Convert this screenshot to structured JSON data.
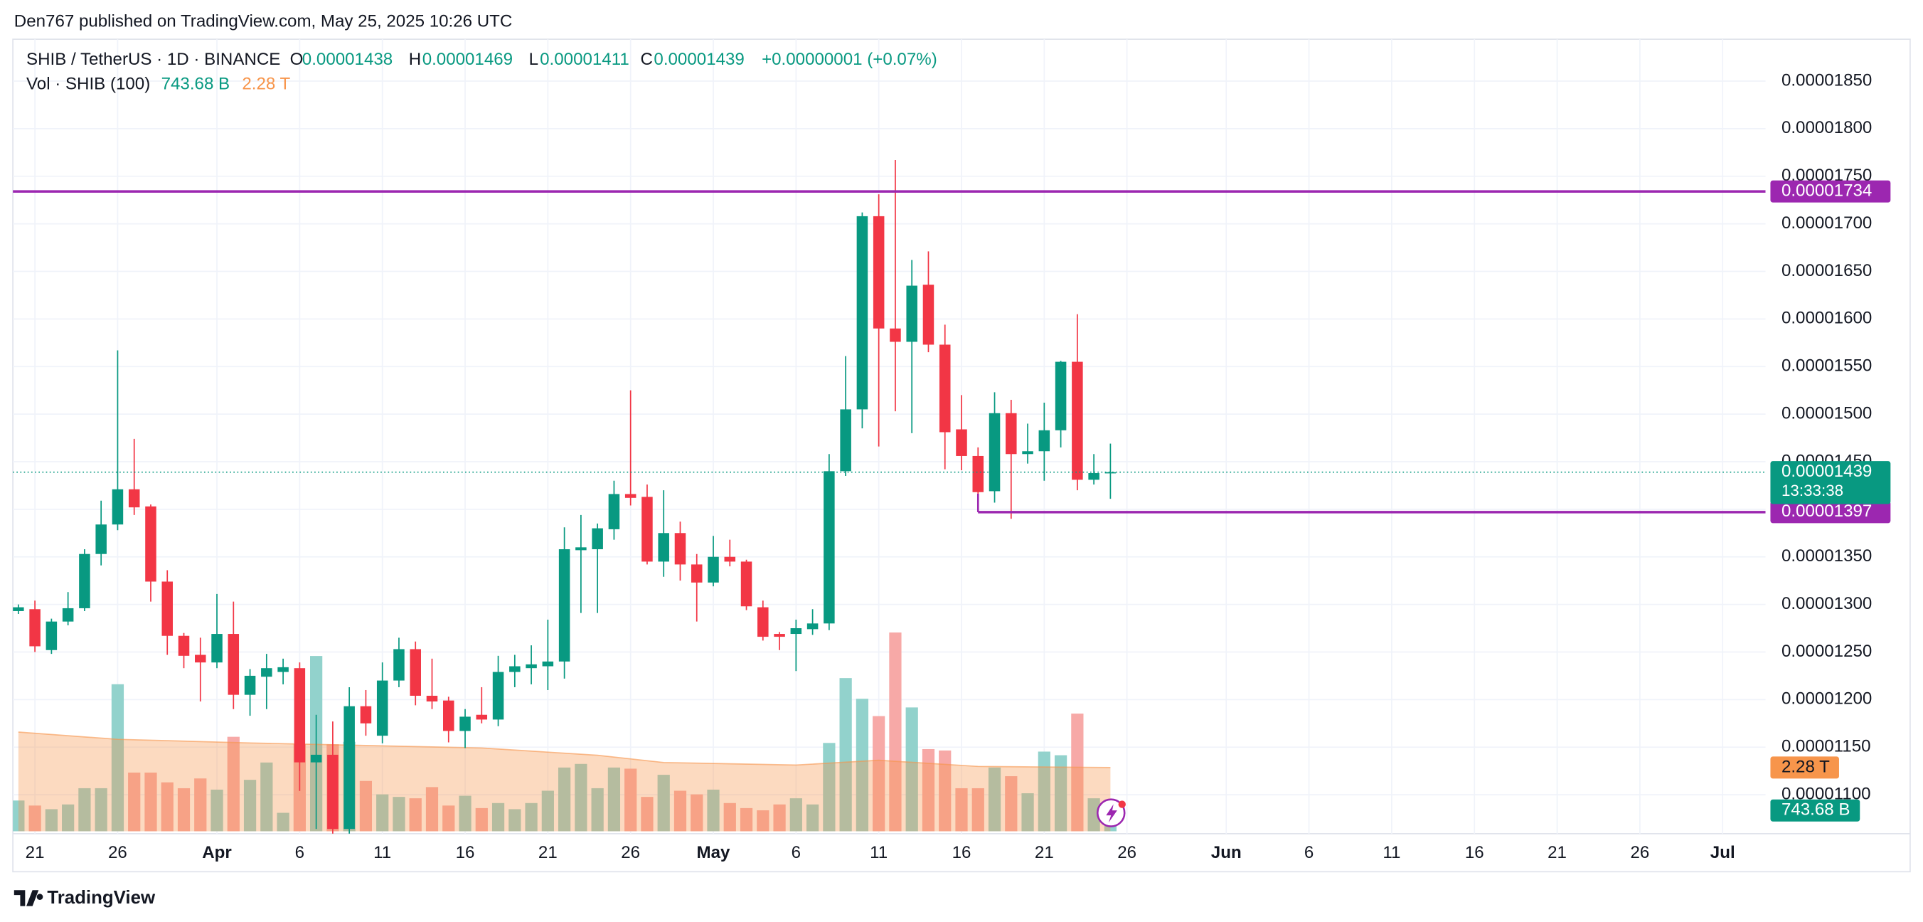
{
  "header": {
    "publisher": "Den767 published on TradingView.com, May 25, 2025 10:26 UTC"
  },
  "footer": {
    "brand": "TradingView"
  },
  "chart_data": {
    "type": "candlestick",
    "legend": {
      "symbol": "SHIB / TetherUS · 1D · BINANCE",
      "o_key": "O",
      "open": "0.00001438",
      "h_key": "H",
      "high": "0.00001469",
      "l_key": "L",
      "low": "0.00001411",
      "c_key": "C",
      "change": "+0.00000001 (+0.07%)",
      "volume_title": "Vol · SHIB (100)"
    },
    "x": [
      "2025-03-20",
      "2025-03-21",
      "2025-03-22",
      "2025-03-23",
      "2025-03-24",
      "2025-03-25",
      "2025-03-26",
      "2025-03-27",
      "2025-03-28",
      "2025-03-29",
      "2025-03-30",
      "2025-03-31",
      "2025-04-01",
      "2025-04-02",
      "2025-04-03",
      "2025-04-04",
      "2025-04-05",
      "2025-04-06",
      "2025-04-07",
      "2025-04-08",
      "2025-04-09",
      "2025-04-10",
      "2025-04-11",
      "2025-04-12",
      "2025-04-13",
      "2025-04-14",
      "2025-04-15",
      "2025-04-16",
      "2025-04-17",
      "2025-04-18",
      "2025-04-19",
      "2025-04-20",
      "2025-04-21",
      "2025-04-22",
      "2025-04-23",
      "2025-04-24",
      "2025-04-25",
      "2025-04-26",
      "2025-04-27",
      "2025-04-28",
      "2025-04-29",
      "2025-04-30",
      "2025-05-01",
      "2025-05-02",
      "2025-05-03",
      "2025-05-04",
      "2025-05-05",
      "2025-05-06",
      "2025-05-07",
      "2025-05-08",
      "2025-05-09",
      "2025-05-10",
      "2025-05-11",
      "2025-05-12",
      "2025-05-13",
      "2025-05-14",
      "2025-05-15",
      "2025-05-16",
      "2025-05-17",
      "2025-05-18",
      "2025-05-19",
      "2025-05-20",
      "2025-05-21",
      "2025-05-22",
      "2025-05-23",
      "2025-05-24",
      "2025-05-25"
    ],
    "open": [
      1.293e-05,
      1.295e-05,
      1.252e-05,
      1.282e-05,
      1.296e-05,
      1.353e-05,
      1.384e-05,
      1.421e-05,
      1.403e-05,
      1.324e-05,
      1.267e-05,
      1.247e-05,
      1.239e-05,
      1.269e-05,
      1.205e-05,
      1.224e-05,
      1.229e-05,
      1.233e-05,
      1.134e-05,
      1.142e-05,
      1.064e-05,
      1.193e-05,
      1.162e-05,
      1.22e-05,
      1.253e-05,
      1.204e-05,
      1.199e-05,
      1.167e-05,
      1.184e-05,
      1.179e-05,
      1.229e-05,
      1.233e-05,
      1.235e-05,
      1.24e-05,
      1.357e-05,
      1.358e-05,
      1.379e-05,
      1.416e-05,
      1.413e-05,
      1.345e-05,
      1.375e-05,
      1.342e-05,
      1.323e-05,
      1.35e-05,
      1.345e-05,
      1.297e-05,
      1.269e-05,
      1.269e-05,
      1.274e-05,
      1.28e-05,
      1.44e-05,
      1.505e-05,
      1.708e-05,
      1.59e-05,
      1.576e-05,
      1.636e-05,
      1.573e-05,
      1.484e-05,
      1.456e-05,
      1.419e-05,
      1.501e-05,
      1.458e-05,
      1.461e-05,
      1.483e-05,
      1.555e-05,
      1.431e-05,
      1.438e-05
    ],
    "high": [
      1.3e-05,
      1.304e-05,
      1.285e-05,
      1.313e-05,
      1.358e-05,
      1.409e-05,
      1.567e-05,
      1.474e-05,
      1.405e-05,
      1.336e-05,
      1.27e-05,
      1.265e-05,
      1.311e-05,
      1.303e-05,
      1.232e-05,
      1.248e-05,
      1.243e-05,
      1.239e-05,
      1.184e-05,
      1.177e-05,
      1.213e-05,
      1.21e-05,
      1.239e-05,
      1.265e-05,
      1.261e-05,
      1.243e-05,
      1.203e-05,
      1.19e-05,
      1.213e-05,
      1.246e-05,
      1.247e-05,
      1.257e-05,
      1.284e-05,
      1.381e-05,
      1.394e-05,
      1.385e-05,
      1.43e-05,
      1.525e-05,
      1.426e-05,
      1.42e-05,
      1.387e-05,
      1.353e-05,
      1.372e-05,
      1.368e-05,
      1.347e-05,
      1.304e-05,
      1.271e-05,
      1.284e-05,
      1.295e-05,
      1.458e-05,
      1.561e-05,
      1.712e-05,
      1.731e-05,
      1.767e-05,
      1.662e-05,
      1.671e-05,
      1.594e-05,
      1.52e-05,
      1.465e-05,
      1.523e-05,
      1.515e-05,
      1.49e-05,
      1.512e-05,
      1.556e-05,
      1.605e-05,
      1.458e-05,
      1.469e-05
    ],
    "low": [
      1.29e-05,
      1.25e-05,
      1.248e-05,
      1.278e-05,
      1.293e-05,
      1.341e-05,
      1.378e-05,
      1.394e-05,
      1.303e-05,
      1.247e-05,
      1.233e-05,
      1.198e-05,
      1.233e-05,
      1.19e-05,
      1.183e-05,
      1.19e-05,
      1.216e-05,
      1.104e-05,
      1.064e-05,
      1.059e-05,
      1.059e-05,
      1.162e-05,
      1.154e-05,
      1.213e-05,
      1.194e-05,
      1.19e-05,
      1.155e-05,
      1.149e-05,
      1.175e-05,
      1.172e-05,
      1.213e-05,
      1.216e-05,
      1.21e-05,
      1.222e-05,
      1.291e-05,
      1.291e-05,
      1.368e-05,
      1.404e-05,
      1.342e-05,
      1.329e-05,
      1.325e-05,
      1.282e-05,
      1.319e-05,
      1.34e-05,
      1.294e-05,
      1.262e-05,
      1.252e-05,
      1.23e-05,
      1.268e-05,
      1.273e-05,
      1.435e-05,
      1.485e-05,
      1.466e-05,
      1.503e-05,
      1.48e-05,
      1.565e-05,
      1.442e-05,
      1.441e-05,
      1.416e-05,
      1.407e-05,
      1.39e-05,
      1.448e-05,
      1.43e-05,
      1.465e-05,
      1.42e-05,
      1.426e-05,
      1.411e-05
    ],
    "close": [
      1.297e-05,
      1.256e-05,
      1.282e-05,
      1.296e-05,
      1.353e-05,
      1.384e-05,
      1.421e-05,
      1.402e-05,
      1.324e-05,
      1.267e-05,
      1.246e-05,
      1.239e-05,
      1.269e-05,
      1.205e-05,
      1.225e-05,
      1.233e-05,
      1.234e-05,
      1.134e-05,
      1.142e-05,
      1.064e-05,
      1.193e-05,
      1.175e-05,
      1.22e-05,
      1.253e-05,
      1.204e-05,
      1.198e-05,
      1.167e-05,
      1.182e-05,
      1.179e-05,
      1.229e-05,
      1.235e-05,
      1.237e-05,
      1.24e-05,
      1.358e-05,
      1.36e-05,
      1.38e-05,
      1.416e-05,
      1.412e-05,
      1.345e-05,
      1.375e-05,
      1.342e-05,
      1.323e-05,
      1.35e-05,
      1.345e-05,
      1.298e-05,
      1.266e-05,
      1.266e-05,
      1.275e-05,
      1.28e-05,
      1.44e-05,
      1.505e-05,
      1.708e-05,
      1.59e-05,
      1.576e-05,
      1.635e-05,
      1.573e-05,
      1.481e-05,
      1.456e-05,
      1.418e-05,
      1.501e-05,
      1.458e-05,
      1.461e-05,
      1.483e-05,
      1.555e-05,
      1.431e-05,
      1.438e-05,
      1.439e-05
    ],
    "up_color": "#089981",
    "down_color": "#f23645",
    "volume": {
      "values": [
        1100000000000.0,
        920000000000.0,
        790000000000.0,
        960000000000.0,
        1540000000000.0,
        1540000000000.0,
        5260000000000.0,
        2100000000000.0,
        2100000000000.0,
        1750000000000.0,
        1540000000000.0,
        1890000000000.0,
        1490000000000.0,
        3380000000000.0,
        1840000000000.0,
        2460000000000.0,
        660000000000.0,
        3110000000000.0,
        6270000000000.0,
        3110000000000.0,
        3200000000000.0,
        1800000000000.0,
        1320000000000.0,
        1230000000000.0,
        1180000000000.0,
        1580000000000.0,
        920000000000.0,
        1270000000000.0,
        830000000000.0,
        1010000000000.0,
        790000000000.0,
        1010000000000.0,
        1450000000000.0,
        2280000000000.0,
        2410000000000.0,
        1540000000000.0,
        2280000000000.0,
        2240000000000.0,
        1230000000000.0,
        2020000000000.0,
        1450000000000.0,
        1320000000000.0,
        1490000000000.0,
        1010000000000.0,
        830000000000.0,
        750000000000.0,
        960000000000.0,
        1180000000000.0,
        960000000000.0,
        3160000000000.0,
        5480000000000.0,
        4740000000000.0,
        4120000000000.0,
        7110000000000.0,
        4430000000000.0,
        2940000000000.0,
        2890000000000.0,
        1540000000000.0,
        1540000000000.0,
        2280000000000.0,
        1970000000000.0,
        1360000000000.0,
        2850000000000.0,
        2720000000000.0,
        4210000000000.0,
        1180000000000.0,
        743680000000.0
      ],
      "up_color": "#92d2cc",
      "down_color": "#f7a9a7",
      "last": {
        "value": 743680000000.0,
        "label": "743.68 B"
      }
    },
    "volume_ma": {
      "x": [
        "2025-03-20",
        "2025-03-26",
        "2025-04-03",
        "2025-04-10",
        "2025-04-17",
        "2025-04-24",
        "2025-04-28",
        "2025-05-06",
        "2025-05-11",
        "2025-05-17",
        "2025-05-25"
      ],
      "values": [
        3550000000000.0,
        3290000000000.0,
        3160000000000.0,
        3070000000000.0,
        2980000000000.0,
        2720000000000.0,
        2460000000000.0,
        2370000000000.0,
        2540000000000.0,
        2320000000000.0,
        2280000000000.0
      ],
      "color": "#f7954b",
      "last": {
        "value": 2280000000000.0,
        "label": "2.28 T"
      }
    },
    "last": {
      "value": 1.439e-05,
      "label": "0.00001439",
      "countdown": "13:33:38",
      "color": "#089981"
    },
    "hlines": [
      {
        "value": 1.734e-05,
        "label": "0.00001734",
        "color": "#9c27b0"
      },
      {
        "value": 1.397e-05,
        "label": "0.00001397",
        "color": "#9c27b0",
        "start": "2025-05-17"
      }
    ],
    "xlim": [
      "2025-03-19",
      "2025-07-03"
    ],
    "xticks": [
      {
        "value": "2025-03-21",
        "label": "21"
      },
      {
        "value": "2025-03-26",
        "label": "26"
      },
      {
        "value": "2025-04-01",
        "label": "Apr"
      },
      {
        "value": "2025-04-06",
        "label": "6"
      },
      {
        "value": "2025-04-11",
        "label": "11"
      },
      {
        "value": "2025-04-16",
        "label": "16"
      },
      {
        "value": "2025-04-21",
        "label": "21"
      },
      {
        "value": "2025-04-26",
        "label": "26"
      },
      {
        "value": "2025-05-01",
        "label": "May"
      },
      {
        "value": "2025-05-06",
        "label": "6"
      },
      {
        "value": "2025-05-11",
        "label": "11"
      },
      {
        "value": "2025-05-16",
        "label": "16"
      },
      {
        "value": "2025-05-21",
        "label": "21"
      },
      {
        "value": "2025-05-26",
        "label": "26"
      },
      {
        "value": "2025-06-01",
        "label": "Jun"
      },
      {
        "value": "2025-06-06",
        "label": "6"
      },
      {
        "value": "2025-06-11",
        "label": "11"
      },
      {
        "value": "2025-06-16",
        "label": "16"
      },
      {
        "value": "2025-06-21",
        "label": "21"
      },
      {
        "value": "2025-06-26",
        "label": "26"
      },
      {
        "value": "2025-07-01",
        "label": "Jul"
      }
    ],
    "ylim": [
      1.059e-05,
      1.894e-05
    ],
    "yticks": [
      {
        "value": 1.1e-05,
        "label": "0.00001100"
      },
      {
        "value": 1.15e-05,
        "label": "0.00001150"
      },
      {
        "value": 1.2e-05,
        "label": "0.00001200"
      },
      {
        "value": 1.25e-05,
        "label": "0.00001250"
      },
      {
        "value": 1.3e-05,
        "label": "0.00001300"
      },
      {
        "value": 1.35e-05,
        "label": "0.00001350"
      },
      {
        "value": 1.4e-05,
        "label": "0.00001400"
      },
      {
        "value": 1.45e-05,
        "label": "0.00001450"
      },
      {
        "value": 1.5e-05,
        "label": "0.00001500"
      },
      {
        "value": 1.55e-05,
        "label": "0.00001550"
      },
      {
        "value": 1.6e-05,
        "label": "0.00001600"
      },
      {
        "value": 1.65e-05,
        "label": "0.00001650"
      },
      {
        "value": 1.7e-05,
        "label": "0.00001700"
      },
      {
        "value": 1.75e-05,
        "label": "0.00001750"
      },
      {
        "value": 1.8e-05,
        "label": "0.00001800"
      },
      {
        "value": 1.85e-05,
        "label": "0.00001850"
      }
    ],
    "grid": true
  }
}
